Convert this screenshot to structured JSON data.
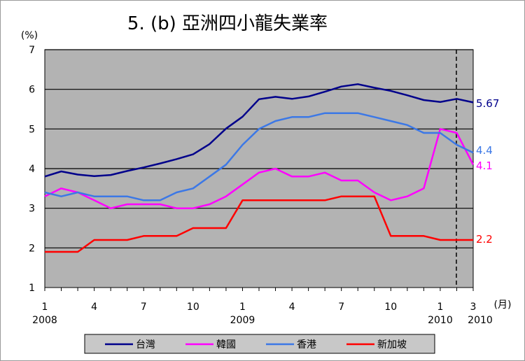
{
  "chart_data": {
    "type": "line",
    "title": "5. (b)  亞洲四小龍失業率",
    "ylabel": "(%)",
    "xunit": "(月)",
    "ylim": [
      1,
      7
    ],
    "yticks": [
      1,
      2,
      3,
      4,
      5,
      6,
      7
    ],
    "grid": true,
    "legend_position": "bottom",
    "x_month_ticks": [
      {
        "label": "1",
        "index": 0
      },
      {
        "label": "4",
        "index": 3
      },
      {
        "label": "7",
        "index": 6
      },
      {
        "label": "10",
        "index": 9
      },
      {
        "label": "1",
        "index": 12
      },
      {
        "label": "4",
        "index": 15
      },
      {
        "label": "7",
        "index": 18
      },
      {
        "label": "10",
        "index": 21
      },
      {
        "label": "1",
        "index": 24
      },
      {
        "label": "3",
        "index": 26
      }
    ],
    "x_year_ticks": [
      {
        "label": "2008",
        "index": 0
      },
      {
        "label": "2009",
        "index": 12
      },
      {
        "label": "2010",
        "index": 24
      },
      {
        "label": "2010",
        "index": 26
      }
    ],
    "divider_index": 25,
    "series": [
      {
        "name": "台灣",
        "color": "#00008b",
        "end_label": "5.67",
        "values": [
          3.8,
          3.93,
          3.85,
          3.81,
          3.84,
          3.94,
          4.03,
          4.13,
          4.24,
          4.36,
          4.62,
          5.01,
          5.31,
          5.75,
          5.81,
          5.76,
          5.82,
          5.94,
          6.07,
          6.13,
          6.04,
          5.96,
          5.85,
          5.73,
          5.68,
          5.76,
          5.67
        ]
      },
      {
        "name": "韓國",
        "color": "#ff00ff",
        "end_label": "4.1",
        "values": [
          3.3,
          3.5,
          3.4,
          3.2,
          3.0,
          3.1,
          3.1,
          3.1,
          3.0,
          3.0,
          3.1,
          3.3,
          3.6,
          3.9,
          4.0,
          3.8,
          3.8,
          3.9,
          3.7,
          3.7,
          3.4,
          3.2,
          3.3,
          3.5,
          5.0,
          4.9,
          4.1
        ]
      },
      {
        "name": "香港",
        "color": "#3c78e6",
        "end_label": "4.4",
        "values": [
          3.4,
          3.3,
          3.4,
          3.3,
          3.3,
          3.3,
          3.2,
          3.2,
          3.4,
          3.5,
          3.8,
          4.1,
          4.6,
          5.0,
          5.2,
          5.3,
          5.3,
          5.4,
          5.4,
          5.4,
          5.3,
          5.2,
          5.1,
          4.9,
          4.9,
          4.6,
          4.4
        ]
      },
      {
        "name": "新加坡",
        "color": "#ff0000",
        "end_label": "2.2",
        "values": [
          1.9,
          1.9,
          1.9,
          2.2,
          2.2,
          2.2,
          2.3,
          2.3,
          2.3,
          2.5,
          2.5,
          2.5,
          3.2,
          3.2,
          3.2,
          3.2,
          3.2,
          3.2,
          3.3,
          3.3,
          3.3,
          2.3,
          2.3,
          2.3,
          2.2,
          2.2,
          2.2
        ]
      }
    ]
  }
}
